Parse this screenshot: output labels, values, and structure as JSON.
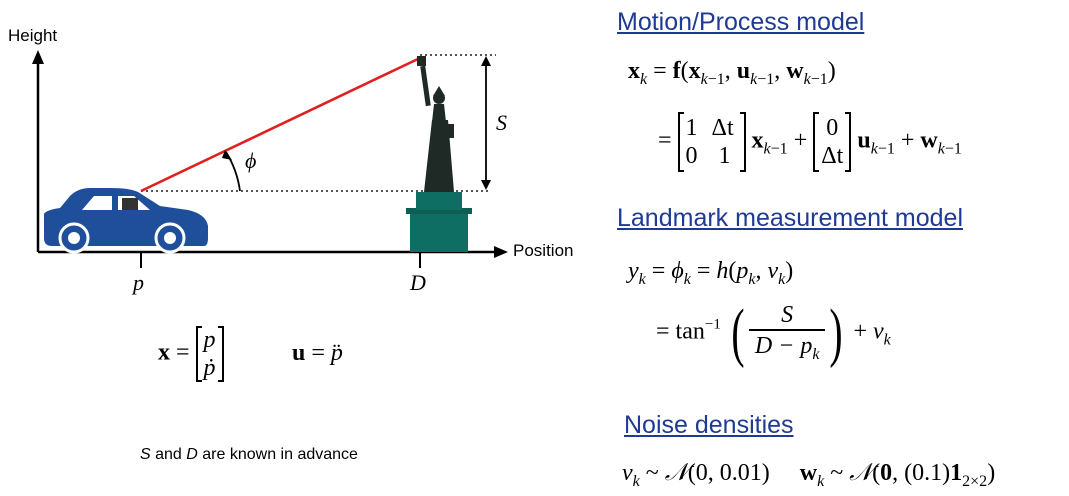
{
  "diagram": {
    "axis_y_label": "Height",
    "axis_x_label": "Position",
    "car_position_label": "p",
    "landmark_position_label": "D",
    "height_label": "S",
    "angle_label": "ϕ",
    "known_note_s": "S",
    "known_note_and": " and ",
    "known_note_d": "D",
    "known_note_rest": " are known in advance",
    "colors": {
      "sight_line": "#e02020",
      "car": "#1f4f9a",
      "statue": "#0f6e63",
      "heading": "#1f3a93"
    }
  },
  "state_definition": {
    "x_symbol": "x",
    "x_vector": [
      "p",
      "ṗ"
    ],
    "u_symbol": "u",
    "u_value": "p̈"
  },
  "motion_model": {
    "title": "Motion/Process model",
    "line1_lhs": "x",
    "line1_lhs_sub": "k",
    "line1_rhs": "f(x",
    "matrix_A": [
      [
        "1",
        "Δt"
      ],
      [
        "0",
        "1"
      ]
    ],
    "matrix_B": [
      "0",
      "Δt"
    ]
  },
  "measurement_model": {
    "title": "Landmark measurement model",
    "line1": "y",
    "numerator": "S",
    "denominator": "D − p",
    "tan": "tan",
    "tan_sup": "−1"
  },
  "noise": {
    "title": "Noise densities",
    "v_dist": "(0,  0.01)",
    "w_dist": "(0.1)",
    "w_sub": "2×2"
  }
}
